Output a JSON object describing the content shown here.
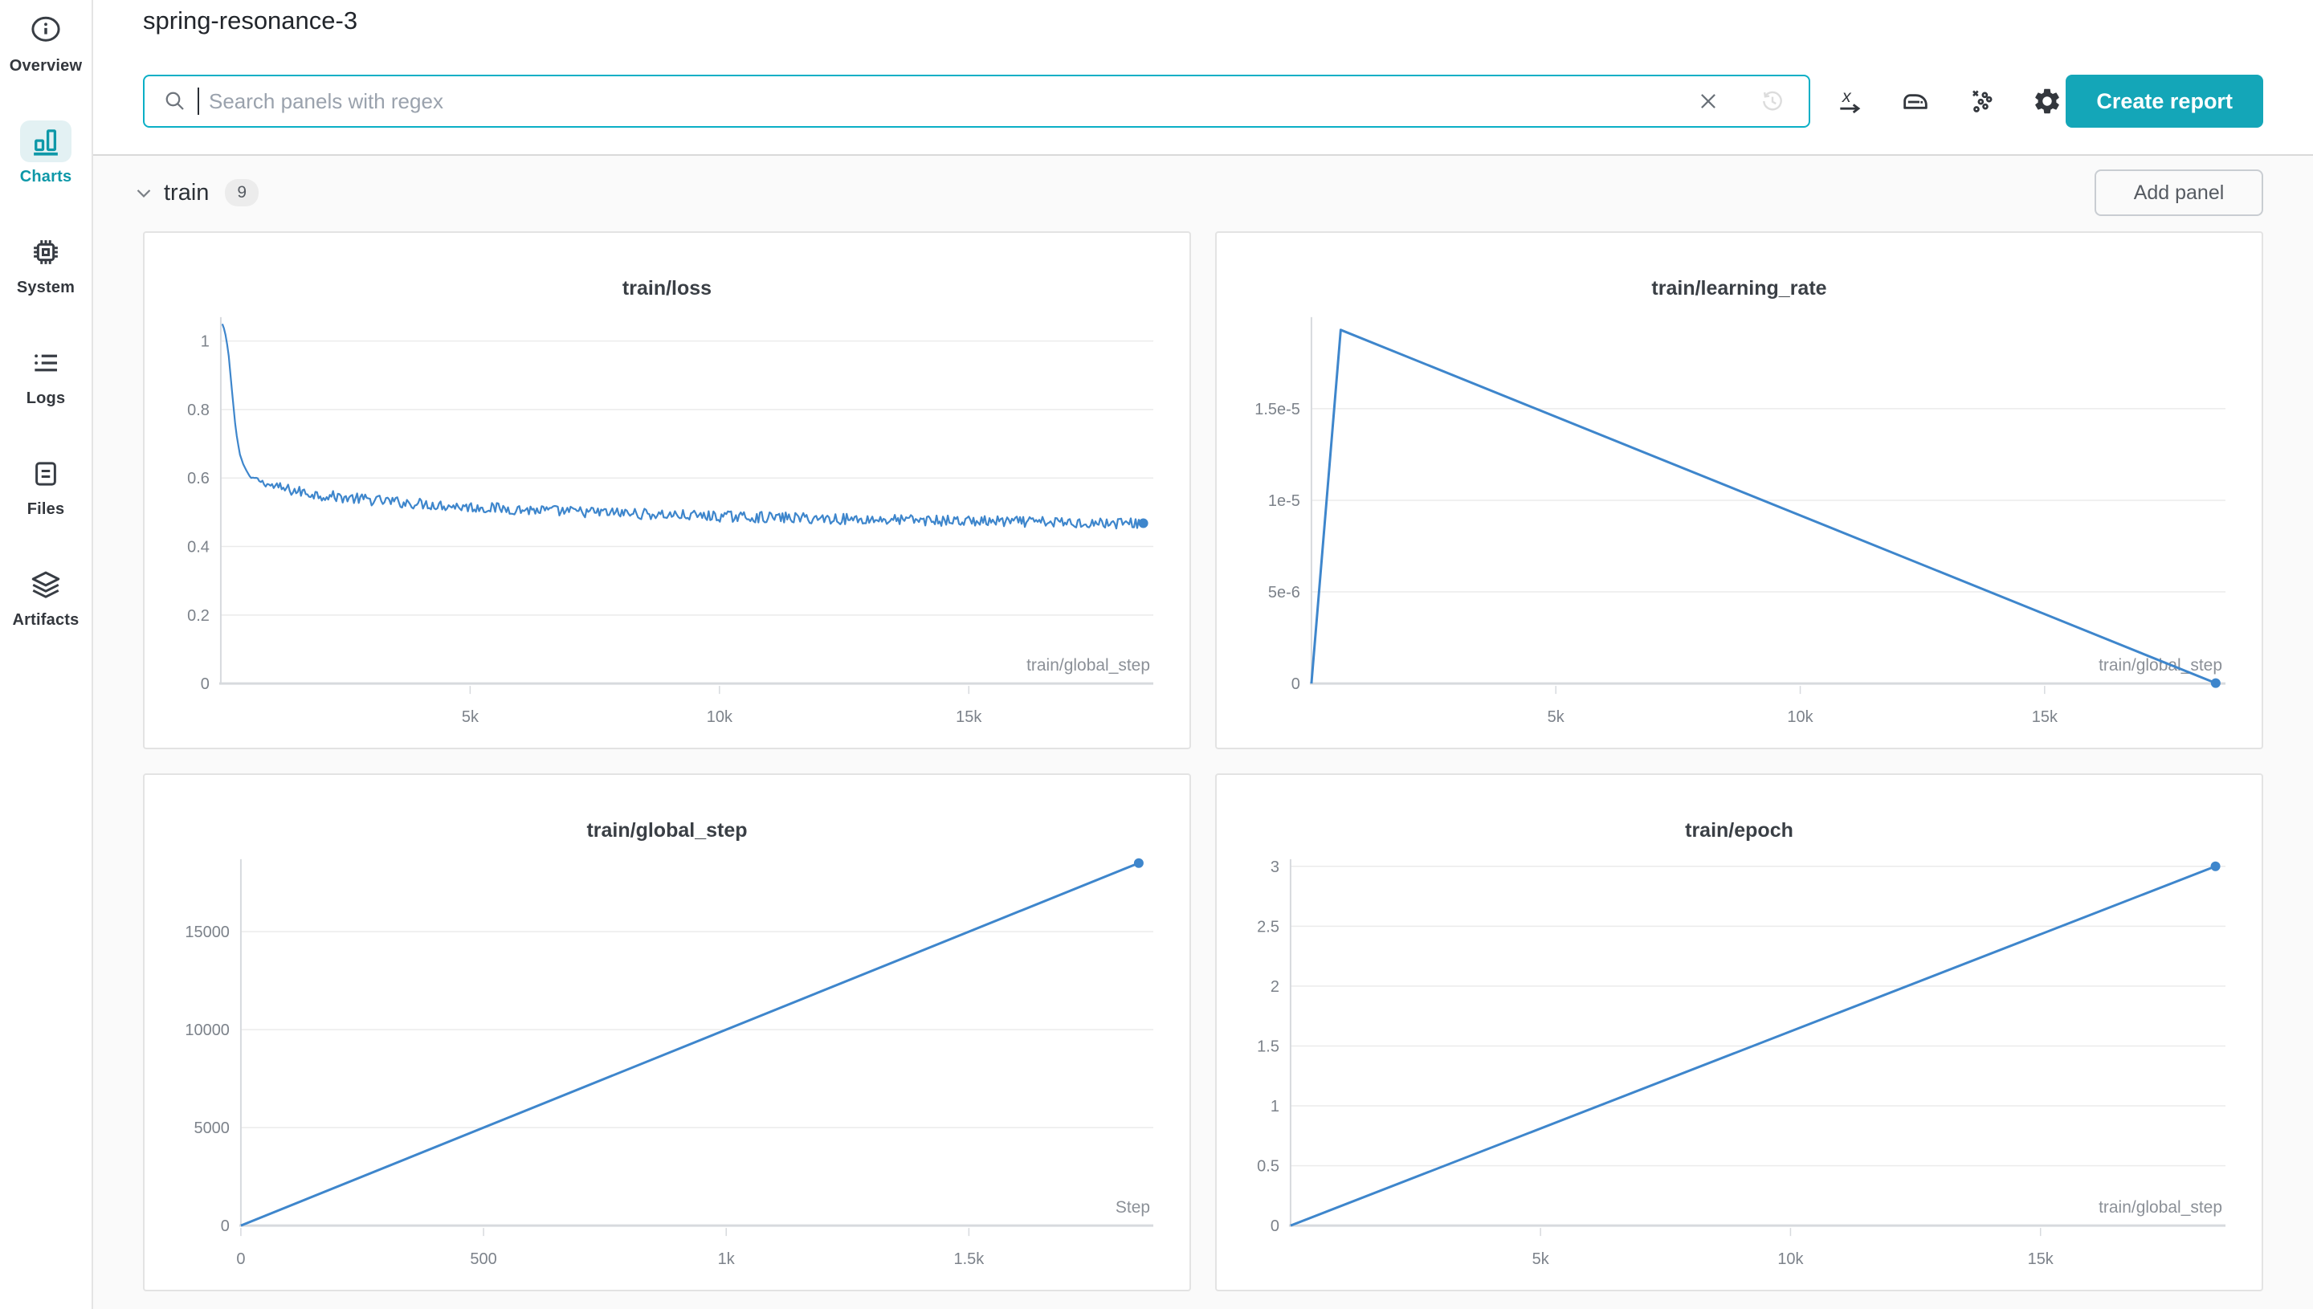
{
  "app": {
    "title": "spring-resonance-3",
    "colors": {
      "accent_teal": "#14a6b8",
      "active_teal": "#0e98a8",
      "active_teal_bg": "#e3f1f3",
      "search_border": "#0bafc6",
      "line_blue": "#3e86cc",
      "grid_line": "#ebebeb",
      "axis_line": "#d7dade",
      "tick_text": "#7c828a",
      "panel_bg": "#ffffff",
      "page_bg": "#fafafa"
    }
  },
  "sidebar": {
    "items": [
      {
        "label": "Overview",
        "icon": "info-icon",
        "active": false
      },
      {
        "label": "Charts",
        "icon": "bar-chart-icon",
        "active": true
      },
      {
        "label": "System",
        "icon": "chip-icon",
        "active": false
      },
      {
        "label": "Logs",
        "icon": "list-icon",
        "active": false
      },
      {
        "label": "Files",
        "icon": "document-icon",
        "active": false
      },
      {
        "label": "Artifacts",
        "icon": "layers-icon",
        "active": false
      }
    ]
  },
  "header": {
    "search": {
      "placeholder": "Search panels with regex",
      "value": ""
    },
    "search_icons": [
      "search-icon",
      "clear-icon",
      "history-icon"
    ],
    "toolbar_icons": [
      "x-axis-icon",
      "smoothing-icon",
      "outliers-icon",
      "settings-icon"
    ],
    "create_report_label": "Create report"
  },
  "section": {
    "name": "train",
    "count": "9",
    "add_panel_label": "Add panel"
  },
  "chart_data": [
    {
      "type": "line",
      "title": "train/loss",
      "xlabel": "train/global_step",
      "x_range": [
        0,
        18700
      ],
      "y_range": [
        0,
        1.07
      ],
      "grid": true,
      "x_ticks": [
        {
          "v": 5000,
          "label": "5k"
        },
        {
          "v": 10000,
          "label": "10k"
        },
        {
          "v": 15000,
          "label": "15k"
        }
      ],
      "y_ticks": [
        {
          "v": 0,
          "label": "0"
        },
        {
          "v": 0.2,
          "label": "0.2"
        },
        {
          "v": 0.4,
          "label": "0.4"
        },
        {
          "v": 0.6,
          "label": "0.6"
        },
        {
          "v": 0.8,
          "label": "0.8"
        },
        {
          "v": 1,
          "label": "1"
        }
      ],
      "series": [
        {
          "name": "train/loss",
          "color": "#3e86cc",
          "stroke_width": 2.2,
          "points": [
            [
              30,
              1.05
            ],
            [
              80,
              1.03
            ],
            [
              150,
              0.97
            ],
            [
              220,
              0.86
            ],
            [
              300,
              0.74
            ],
            [
              380,
              0.67
            ],
            [
              450,
              0.64
            ],
            [
              520,
              0.62
            ],
            [
              600,
              0.6
            ],
            [
              700,
              0.6
            ],
            [
              800,
              0.59
            ],
            [
              1000,
              0.578
            ],
            [
              1200,
              0.57
            ],
            [
              1500,
              0.562
            ],
            [
              2000,
              0.55
            ],
            [
              2500,
              0.543
            ],
            [
              3000,
              0.536
            ],
            [
              3500,
              0.53
            ],
            [
              4000,
              0.525
            ],
            [
              4500,
              0.52
            ],
            [
              5000,
              0.515
            ],
            [
              5500,
              0.512
            ],
            [
              6000,
              0.508
            ],
            [
              6500,
              0.505
            ],
            [
              7000,
              0.502
            ],
            [
              7500,
              0.5
            ],
            [
              8000,
              0.498
            ],
            [
              8500,
              0.495
            ],
            [
              9000,
              0.492
            ],
            [
              9500,
              0.49
            ],
            [
              10000,
              0.488
            ],
            [
              11000,
              0.485
            ],
            [
              12000,
              0.482
            ],
            [
              13000,
              0.479
            ],
            [
              14000,
              0.477
            ],
            [
              15000,
              0.474
            ],
            [
              16000,
              0.472
            ],
            [
              17000,
              0.47
            ],
            [
              18000,
              0.468
            ],
            [
              18500,
              0.468
            ]
          ],
          "noise": {
            "amplitude": 0.016,
            "start_x": 600,
            "ramp": 500
          }
        }
      ],
      "end_dot": true,
      "layout": {
        "margin_left": 95
      }
    },
    {
      "type": "line",
      "title": "train/learning_rate",
      "xlabel": "train/global_step",
      "x_range": [
        0,
        18700
      ],
      "y_range": [
        0,
        2e-05
      ],
      "grid": true,
      "x_ticks": [
        {
          "v": 5000,
          "label": "5k"
        },
        {
          "v": 10000,
          "label": "10k"
        },
        {
          "v": 15000,
          "label": "15k"
        }
      ],
      "y_ticks": [
        {
          "v": 0,
          "label": "0"
        },
        {
          "v": 5e-06,
          "label": "5e-6"
        },
        {
          "v": 1e-05,
          "label": "1e-5"
        },
        {
          "v": 1.5e-05,
          "label": "1.5e-5"
        }
      ],
      "series": [
        {
          "name": "train/learning_rate",
          "color": "#3e86cc",
          "stroke_width": 3,
          "points": [
            [
              0,
              0
            ],
            [
              600,
              1.93e-05
            ],
            [
              18500,
              2e-08
            ]
          ]
        }
      ],
      "end_dot": true,
      "layout": {
        "margin_left": 118
      }
    },
    {
      "type": "line",
      "title": "train/global_step",
      "xlabel": "Step",
      "x_range": [
        0,
        1880
      ],
      "y_range": [
        0,
        18700
      ],
      "grid": true,
      "x_ticks": [
        {
          "v": 0,
          "label": "0"
        },
        {
          "v": 500,
          "label": "500"
        },
        {
          "v": 1000,
          "label": "1k"
        },
        {
          "v": 1500,
          "label": "1.5k"
        }
      ],
      "y_ticks": [
        {
          "v": 0,
          "label": "0"
        },
        {
          "v": 5000,
          "label": "5000"
        },
        {
          "v": 10000,
          "label": "10000"
        },
        {
          "v": 15000,
          "label": "15000"
        }
      ],
      "series": [
        {
          "name": "train/global_step",
          "color": "#3e86cc",
          "stroke_width": 3,
          "points": [
            [
              0,
              0
            ],
            [
              1850,
              18500
            ]
          ]
        }
      ],
      "end_dot": true,
      "layout": {
        "margin_left": 120
      }
    },
    {
      "type": "line",
      "title": "train/epoch",
      "xlabel": "train/global_step",
      "x_range": [
        0,
        18700
      ],
      "y_range": [
        0,
        3.06
      ],
      "grid": true,
      "x_ticks": [
        {
          "v": 5000,
          "label": "5k"
        },
        {
          "v": 10000,
          "label": "10k"
        },
        {
          "v": 15000,
          "label": "15k"
        }
      ],
      "y_ticks": [
        {
          "v": 0,
          "label": "0"
        },
        {
          "v": 0.5,
          "label": "0.5"
        },
        {
          "v": 1,
          "label": "1"
        },
        {
          "v": 1.5,
          "label": "1.5"
        },
        {
          "v": 2,
          "label": "2"
        },
        {
          "v": 2.5,
          "label": "2.5"
        },
        {
          "v": 3,
          "label": "3"
        }
      ],
      "series": [
        {
          "name": "train/epoch",
          "color": "#3e86cc",
          "stroke_width": 3,
          "points": [
            [
              0,
              0
            ],
            [
              18500,
              3
            ]
          ]
        }
      ],
      "end_dot": true,
      "layout": {
        "margin_left": 92
      }
    }
  ]
}
